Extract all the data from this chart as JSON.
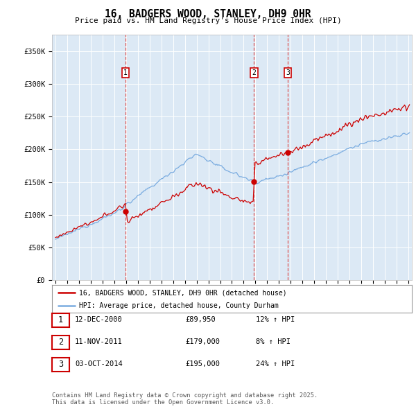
{
  "title": "16, BADGERS WOOD, STANLEY, DH9 0HR",
  "subtitle": "Price paid vs. HM Land Registry's House Price Index (HPI)",
  "background_color": "#dce9f5",
  "plot_bg_color": "#dce9f5",
  "ylim": [
    0,
    375000
  ],
  "yticks": [
    0,
    50000,
    100000,
    150000,
    200000,
    250000,
    300000,
    350000
  ],
  "ytick_labels": [
    "£0",
    "£50K",
    "£100K",
    "£150K",
    "£200K",
    "£250K",
    "£300K",
    "£350K"
  ],
  "x_start_year": 1995,
  "x_end_year": 2025,
  "sales": [
    {
      "date": 2000.95,
      "price": 89950,
      "label": "1"
    },
    {
      "date": 2011.87,
      "price": 179000,
      "label": "2"
    },
    {
      "date": 2014.75,
      "price": 195000,
      "label": "3"
    }
  ],
  "red_line_color": "#cc0000",
  "blue_line_color": "#7aace0",
  "dashed_line_color": "#dd4444",
  "marker_box_color": "#cc0000",
  "sale_dot_color": "#cc0000",
  "legend_entries": [
    "16, BADGERS WOOD, STANLEY, DH9 0HR (detached house)",
    "HPI: Average price, detached house, County Durham"
  ],
  "table_rows": [
    {
      "num": "1",
      "date": "12-DEC-2000",
      "price": "£89,950",
      "hpi": "12% ↑ HPI"
    },
    {
      "num": "2",
      "date": "11-NOV-2011",
      "price": "£179,000",
      "hpi": "8% ↑ HPI"
    },
    {
      "num": "3",
      "date": "03-OCT-2014",
      "price": "£195,000",
      "hpi": "24% ↑ HPI"
    }
  ],
  "footer": "Contains HM Land Registry data © Crown copyright and database right 2025.\nThis data is licensed under the Open Government Licence v3.0."
}
